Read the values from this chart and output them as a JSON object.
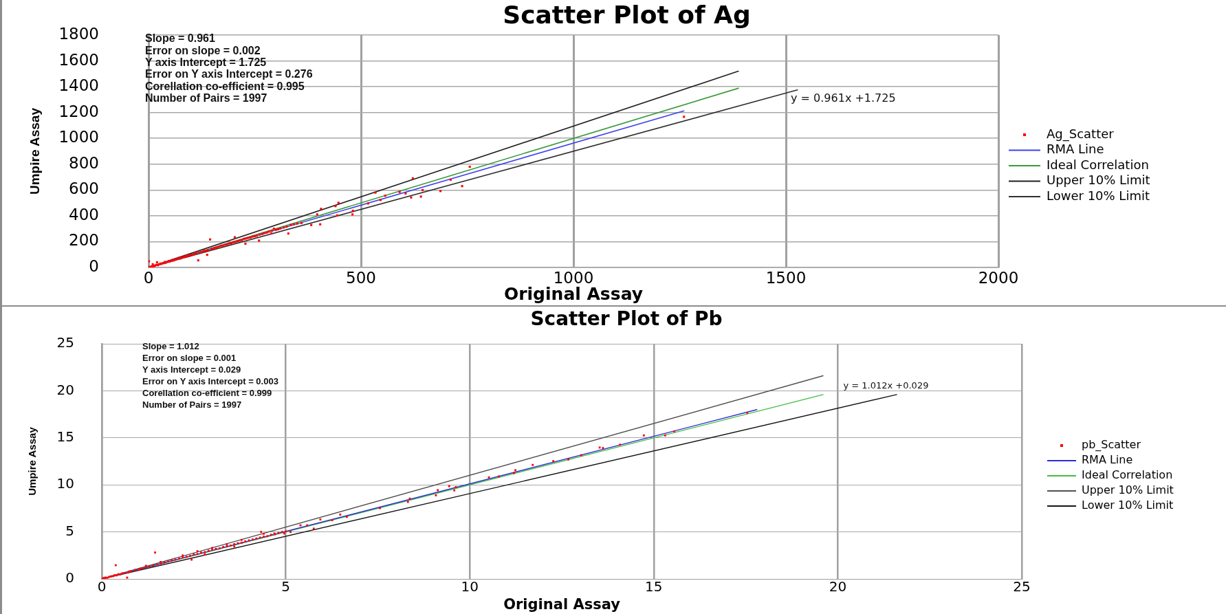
{
  "chart_data": [
    {
      "type": "scatter",
      "title": "Scatter Plot of Ag",
      "xlabel": "Original Assay",
      "ylabel": "Umpire Assay",
      "xlim": [
        0,
        2000
      ],
      "xticks": [
        0,
        500,
        1000,
        1500,
        2000
      ],
      "ylim": [
        0,
        1800
      ],
      "yticks": [
        0,
        200,
        400,
        600,
        800,
        1000,
        1200,
        1400,
        1600,
        1800
      ],
      "grid": true,
      "legend": "right",
      "marker": "square",
      "annotations": [
        "Slope = 0.961",
        "Error on slope = 0.002",
        "Y axis Intercept = 1.725",
        "Error on Y axis Intercept = 0.276",
        "Corellation co-efficient = 0.995",
        "Number of Pairs = 1997",
        "y = 0.961x +1.725"
      ],
      "series": [
        {
          "name": "Ag_Scatter",
          "type": "scatter",
          "color": "#ff0000",
          "x": [
            1,
            2,
            5,
            8,
            10,
            12,
            15,
            18,
            20,
            22,
            25,
            28,
            30,
            35,
            38,
            40,
            45,
            48,
            50,
            55,
            58,
            60,
            65,
            70,
            72,
            75,
            80,
            85,
            88,
            90,
            95,
            100,
            105,
            110,
            112,
            117,
            120,
            125,
            130,
            135,
            138,
            140,
            145,
            148,
            150,
            155,
            160,
            165,
            170,
            175,
            180,
            185,
            190,
            195,
            200,
            203,
            205,
            210,
            215,
            220,
            225,
            228,
            230,
            235,
            240,
            245,
            250,
            255,
            260,
            262,
            268,
            272,
            278,
            283,
            289,
            290,
            295,
            300,
            305,
            310,
            318,
            325,
            329,
            335,
            342,
            350,
            360,
            383,
            397,
            404,
            406,
            440,
            444,
            447,
            480,
            481,
            517,
            534,
            546,
            557,
            591,
            605,
            618,
            622,
            641,
            645,
            687,
            711,
            738,
            756,
            1260
          ],
          "values": [
            48,
            5,
            3,
            10,
            25,
            8,
            14,
            20,
            40,
            18,
            24,
            30,
            27,
            33,
            42,
            36,
            44,
            50,
            46,
            52,
            60,
            55,
            62,
            68,
            75,
            70,
            78,
            82,
            92,
            85,
            90,
            98,
            101,
            104,
            115,
            55,
            116,
            120,
            128,
            130,
            98,
            135,
            217,
            142,
            146,
            150,
            155,
            160,
            168,
            170,
            176,
            180,
            186,
            188,
            196,
            234,
            198,
            204,
            210,
            212,
            222,
            184,
            225,
            230,
            232,
            240,
            242,
            246,
            208,
            255,
            260,
            266,
            270,
            278,
            263,
            284,
            300,
            292,
            296,
            302,
            310,
            316,
            263,
            330,
            334,
            340,
            345,
            329,
            411,
            334,
            454,
            475,
            403,
            501,
            411,
            439,
            496,
            580,
            523,
            556,
            585,
            573,
            542,
            690,
            549,
            599,
            592,
            680,
            630,
            780,
            1167
          ]
        },
        {
          "name": "RMA Line",
          "type": "line",
          "marker": "none",
          "color": "#4040ee",
          "x": [
            0,
            1260
          ],
          "values": [
            2,
            1213
          ]
        },
        {
          "name": "Ideal Correlation",
          "type": "line",
          "marker": "none",
          "color": "#3a9a3a",
          "x": [
            0,
            1388
          ],
          "values": [
            0,
            1388
          ]
        },
        {
          "name": "Upper 10% Limit",
          "type": "line",
          "marker": "none",
          "color": "#202020",
          "x": [
            0,
            1388
          ],
          "values": [
            0,
            1520
          ]
        },
        {
          "name": "Lower 10% Limit",
          "type": "line",
          "marker": "none",
          "color": "#303030",
          "x": [
            0,
            1527
          ],
          "values": [
            0,
            1375
          ]
        }
      ]
    },
    {
      "type": "scatter",
      "title": "Scatter Plot of Pb",
      "xlabel": "Original Assay",
      "ylabel": "Umpire Assay",
      "xlim": [
        0,
        25
      ],
      "xticks": [
        0,
        5,
        10,
        15,
        20,
        25
      ],
      "ylim": [
        0,
        25
      ],
      "yticks": [
        0,
        5,
        10,
        15,
        20,
        25
      ],
      "grid": true,
      "legend": "right",
      "marker": "square",
      "annotations": [
        "Slope = 1.012",
        "Error on slope = 0.001",
        "Y axis Intercept = 0.029",
        "Error on Y axis Intercept = 0.003",
        "Corellation co-efficient = 0.999",
        "Number of Pairs = 1997",
        "y = 1.012x +0.029"
      ],
      "series": [
        {
          "name": "pb_Scatter",
          "type": "scatter",
          "color": "#ff0000",
          "x": [
            0.02,
            0.05,
            0.08,
            0.1,
            0.15,
            0.2,
            0.25,
            0.3,
            0.35,
            0.38,
            0.4,
            0.45,
            0.5,
            0.55,
            0.6,
            0.69,
            0.7,
            0.75,
            0.8,
            0.9,
            1.0,
            1.05,
            1.1,
            1.2,
            1.2,
            1.3,
            1.4,
            1.45,
            1.5,
            1.6,
            1.6,
            1.7,
            1.8,
            1.9,
            2.0,
            2.1,
            2.2,
            2.2,
            2.3,
            2.4,
            2.44,
            2.5,
            2.6,
            2.6,
            2.7,
            2.8,
            2.8,
            2.9,
            3.0,
            3.0,
            3.1,
            3.2,
            3.3,
            3.4,
            3.4,
            3.5,
            3.6,
            3.6,
            3.7,
            3.8,
            3.8,
            3.9,
            4.0,
            4.1,
            4.2,
            4.3,
            4.33,
            4.4,
            4.4,
            4.5,
            4.6,
            4.69,
            4.7,
            4.8,
            4.9,
            4.96,
            5.0,
            5.13,
            5.4,
            5.58,
            5.76,
            5.94,
            6.26,
            6.48,
            6.66,
            7.56,
            8.32,
            8.37,
            9.08,
            9.13,
            9.44,
            9.58,
            9.62,
            10.52,
            10.79,
            11.2,
            11.24,
            11.71,
            12.27,
            12.68,
            13.03,
            13.53,
            13.62,
            14.08,
            14.73,
            15.31,
            15.56,
            17.54
          ],
          "values": [
            0.05,
            0.1,
            0.06,
            0.15,
            0.12,
            0.22,
            0.28,
            0.3,
            0.4,
            1.46,
            0.38,
            0.5,
            0.48,
            0.58,
            0.62,
            0.14,
            0.68,
            0.8,
            0.82,
            0.95,
            1.0,
            1.1,
            1.12,
            1.25,
            1.4,
            1.35,
            1.42,
            2.81,
            1.55,
            1.62,
            1.8,
            1.75,
            1.85,
            1.95,
            2.05,
            2.15,
            2.3,
            2.5,
            2.35,
            2.45,
            2.05,
            2.6,
            2.65,
            2.95,
            2.8,
            2.85,
            2.6,
            3.0,
            3.1,
            3.3,
            3.2,
            3.25,
            3.4,
            3.5,
            3.7,
            3.55,
            3.7,
            3.45,
            3.8,
            3.85,
            4.15,
            4.0,
            4.1,
            4.2,
            4.3,
            4.4,
            5.0,
            4.5,
            4.8,
            4.55,
            4.7,
            4.83,
            4.75,
            4.9,
            5.0,
            4.83,
            5.05,
            5.0,
            5.7,
            5.7,
            5.35,
            6.32,
            6.25,
            6.84,
            6.6,
            7.53,
            8.19,
            8.54,
            8.89,
            9.44,
            9.86,
            9.41,
            9.76,
            10.8,
            10.9,
            11.25,
            11.56,
            12.12,
            12.53,
            12.7,
            13.16,
            13.97,
            13.92,
            14.27,
            15.26,
            15.26,
            15.69,
            17.67
          ]
        },
        {
          "name": "RMA Line",
          "type": "line",
          "marker": "none",
          "color": "#2b2bd6",
          "x": [
            0,
            17.8
          ],
          "values": [
            0,
            18
          ]
        },
        {
          "name": "Ideal Correlation",
          "type": "line",
          "marker": "none",
          "color": "#44bb44",
          "x": [
            0,
            19.6
          ],
          "values": [
            0,
            19.6
          ]
        },
        {
          "name": "Upper 10% Limit",
          "type": "line",
          "marker": "none",
          "color": "#505050",
          "x": [
            0,
            19.6
          ],
          "values": [
            0,
            21.6
          ]
        },
        {
          "name": "Lower 10% Limit",
          "type": "line",
          "marker": "none",
          "color": "#151515",
          "x": [
            0,
            21.6
          ],
          "values": [
            0,
            19.6
          ]
        }
      ]
    }
  ]
}
